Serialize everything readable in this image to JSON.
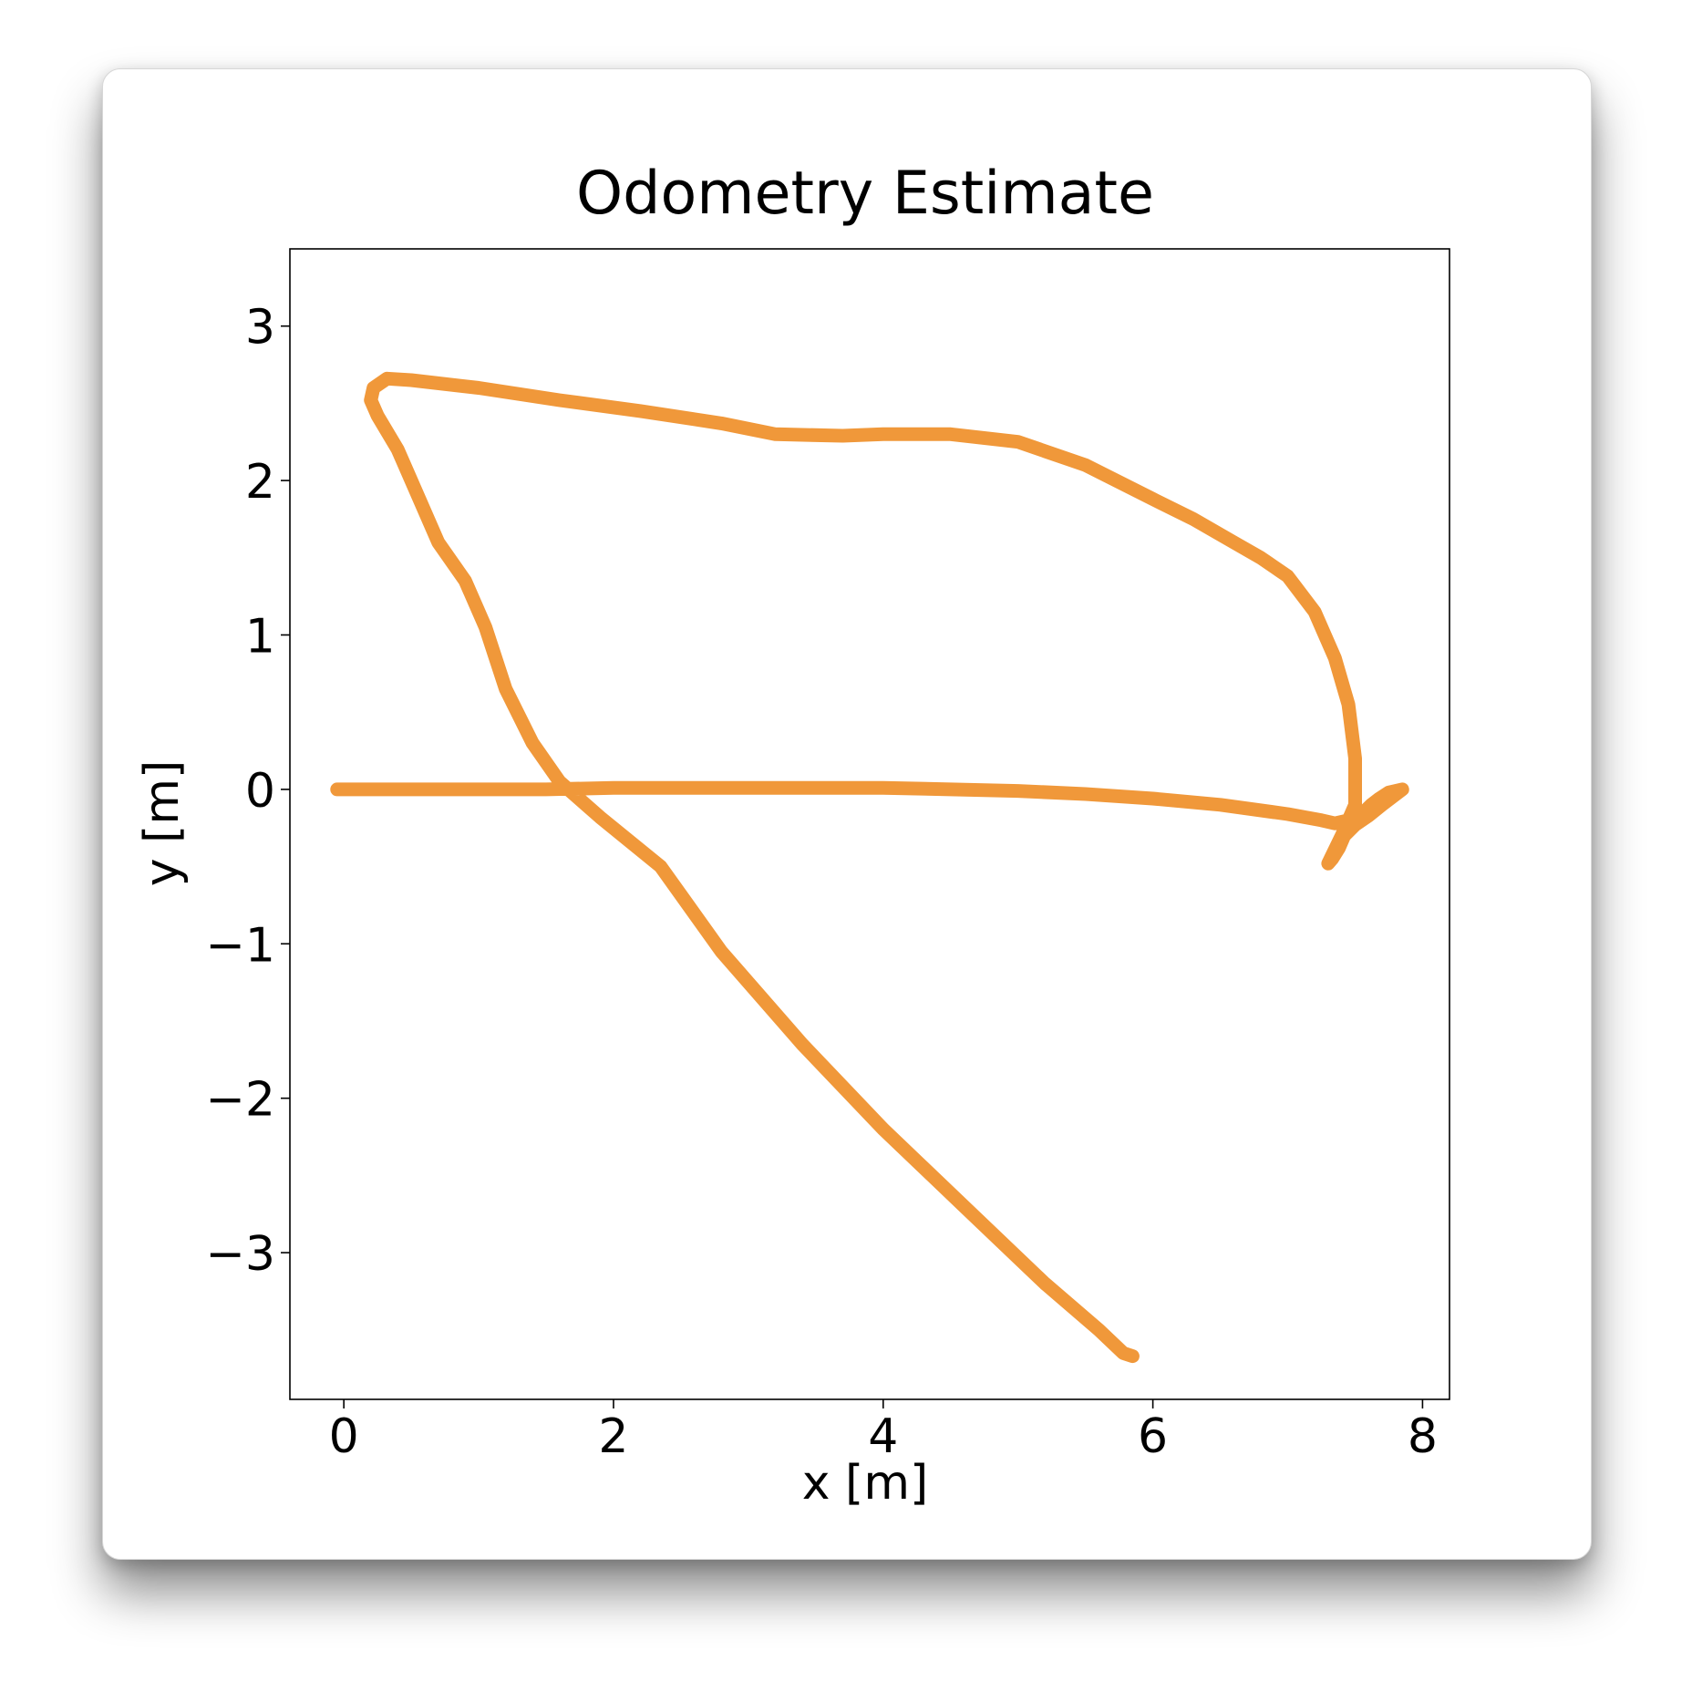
{
  "chart_data": {
    "type": "line",
    "title": "Odometry Estimate",
    "xlabel": "x [m]",
    "ylabel": "y [m]",
    "xlim": [
      -0.4,
      8.2
    ],
    "ylim": [
      -3.95,
      3.5
    ],
    "xticks": [
      0,
      2,
      4,
      6,
      8
    ],
    "yticks": [
      -3,
      -2,
      -1,
      0,
      1,
      2,
      3
    ],
    "xtick_labels": [
      "0",
      "2",
      "4",
      "6",
      "8"
    ],
    "ytick_labels": [
      "−3",
      "−2",
      "−1",
      "0",
      "1",
      "2",
      "3"
    ],
    "grid": false,
    "line_color": "#f0983a",
    "series": [
      {
        "x": [
          -0.05,
          0.5,
          1.0,
          1.5,
          2.0,
          2.5,
          3.0,
          3.5,
          4.0,
          4.5,
          5.0,
          5.5,
          6.0,
          6.5,
          7.0,
          7.25,
          7.35,
          7.45,
          7.55,
          7.62,
          7.68,
          7.75,
          7.85,
          7.7,
          7.6,
          7.5,
          7.42,
          7.38,
          7.33,
          7.3,
          7.4,
          7.5,
          7.5,
          7.45,
          7.35,
          7.2,
          7.0,
          6.8,
          6.6,
          6.3,
          6.0,
          5.5,
          5.0,
          4.5,
          4.0,
          3.7,
          3.2,
          2.8,
          2.2,
          1.6,
          1.0,
          0.5,
          0.32,
          0.22,
          0.2,
          0.25,
          0.4,
          0.55,
          0.7,
          0.9,
          1.05,
          1.2,
          1.4,
          1.6,
          1.9,
          2.35,
          2.8,
          3.4,
          4.0,
          4.6,
          5.2,
          5.6,
          5.78,
          5.85
        ],
        "y": [
          0.0,
          0.0,
          0.0,
          0.0,
          0.01,
          0.01,
          0.01,
          0.01,
          0.01,
          0.0,
          -0.01,
          -0.03,
          -0.06,
          -0.1,
          -0.16,
          -0.2,
          -0.22,
          -0.2,
          -0.16,
          -0.1,
          -0.06,
          -0.02,
          0.0,
          -0.1,
          -0.17,
          -0.23,
          -0.3,
          -0.38,
          -0.45,
          -0.48,
          -0.3,
          -0.1,
          0.2,
          0.55,
          0.85,
          1.15,
          1.38,
          1.5,
          1.6,
          1.75,
          1.88,
          2.1,
          2.25,
          2.3,
          2.3,
          2.29,
          2.3,
          2.37,
          2.45,
          2.52,
          2.6,
          2.65,
          2.66,
          2.6,
          2.52,
          2.42,
          2.2,
          1.9,
          1.6,
          1.35,
          1.05,
          0.65,
          0.3,
          0.05,
          -0.18,
          -0.5,
          -1.05,
          -1.65,
          -2.2,
          -2.7,
          -3.2,
          -3.5,
          -3.65,
          -3.67
        ]
      }
    ]
  }
}
